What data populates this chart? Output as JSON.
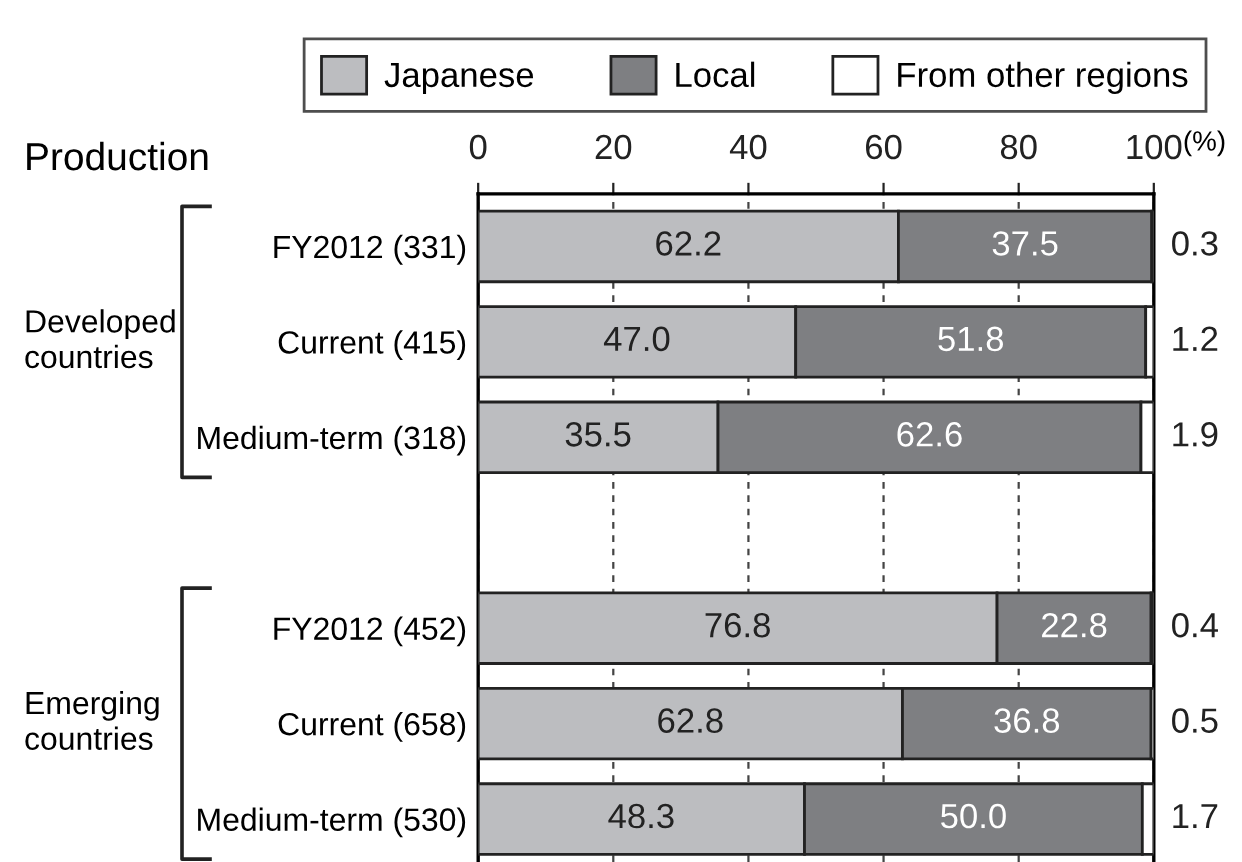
{
  "chart_data": {
    "type": "bar",
    "orientation": "horizontal",
    "stacked": true,
    "title": "Production",
    "xlabel": "(%)",
    "categories": [
      "FY2012 (331)",
      "Current (415)",
      "Medium-term (318)",
      null,
      "FY2012 (452)",
      "Current (658)",
      "Medium-term (530)"
    ],
    "series": [
      {
        "name": "Japanese",
        "color": "#bcbdc0",
        "values": [
          62.2,
          47.0,
          35.5,
          null,
          76.8,
          62.8,
          48.3
        ],
        "value_labels": [
          "62.2",
          "47.0",
          "35.5",
          null,
          "76.8",
          "62.8",
          "48.3"
        ]
      },
      {
        "name": "Local",
        "color": "#7e7f82",
        "values": [
          37.5,
          51.8,
          62.6,
          null,
          22.8,
          36.8,
          50.0
        ],
        "value_labels": [
          "37.5",
          "51.8",
          "62.6",
          null,
          "22.8",
          "36.8",
          "50.0"
        ]
      },
      {
        "name": "From other regions",
        "color": "#ffffff",
        "values": [
          0.3,
          1.2,
          1.9,
          null,
          0.4,
          0.5,
          1.7
        ],
        "value_labels": [
          "0.3",
          "1.2",
          "1.9",
          null,
          "0.4",
          "0.5",
          "1.7"
        ]
      }
    ],
    "annotations": [
      "Developed\ncountries",
      "Emerging\ncountries"
    ],
    "xlim": [
      0,
      100
    ],
    "xticks": [
      0,
      20,
      40,
      60,
      80,
      100
    ],
    "grid": "x",
    "legend": "top"
  }
}
